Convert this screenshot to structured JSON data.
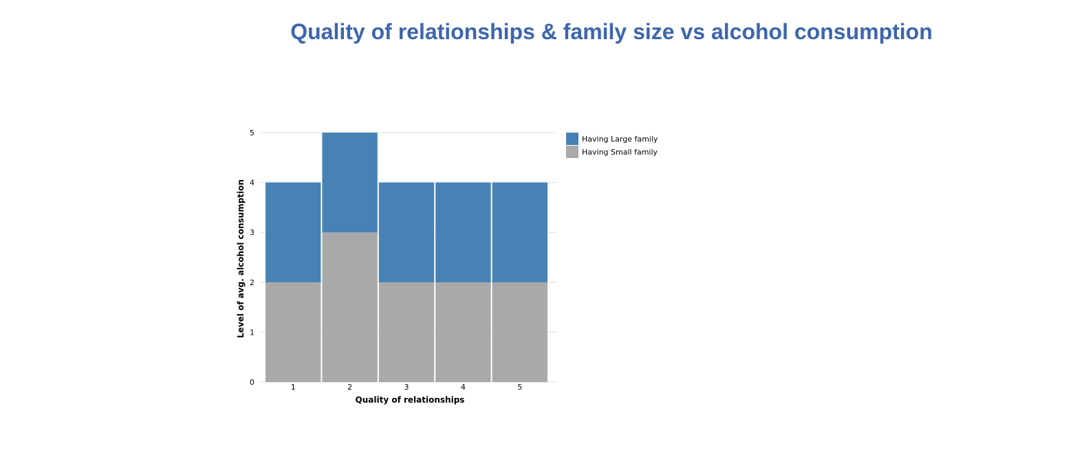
{
  "chart_data": {
    "type": "bar",
    "stacked": true,
    "title": "Quality of relationships & family size vs alcohol consumption",
    "xlabel": "Quality of relationships",
    "ylabel": "Level of avg. alcohol consumption",
    "categories": [
      "1",
      "2",
      "3",
      "4",
      "5"
    ],
    "yticks": [
      "0",
      "1",
      "2",
      "3",
      "4",
      "5"
    ],
    "ylim": [
      0,
      5
    ],
    "grid": true,
    "legend_position": "right",
    "series": [
      {
        "name": "Having Small family",
        "color": "#a9a9a9",
        "values": [
          2,
          3,
          2,
          2,
          2
        ]
      },
      {
        "name": "Having Large family",
        "color": "#4682b4",
        "values": [
          2,
          2,
          2,
          2,
          2
        ]
      }
    ],
    "legend_order": [
      1,
      0
    ]
  }
}
